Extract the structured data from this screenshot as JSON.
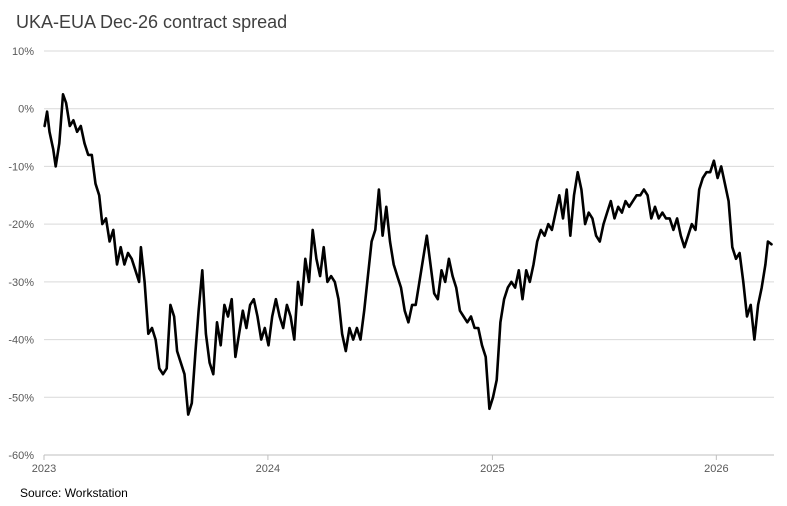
{
  "chart_data": {
    "type": "line",
    "title": "UKA-EUA Dec-26 contract spread",
    "source": "Source: Workstation",
    "xlabel": "",
    "ylabel": "",
    "x_ticks": [
      "2023",
      "2024",
      "2025",
      "2026"
    ],
    "y_ticks": [
      "10%",
      "0%",
      "-10%",
      "-20%",
      "-30%",
      "-40%",
      "-50%",
      "-60%"
    ],
    "ylim": [
      -60,
      10
    ],
    "xlim": [
      "2023-01-01",
      "2026-04-05"
    ],
    "grid": true,
    "legend": "none",
    "series": [
      {
        "color": "#000000",
        "points": [
          [
            "2023-01-02",
            -3
          ],
          [
            "2023-01-06",
            -0.5
          ],
          [
            "2023-01-10",
            -4
          ],
          [
            "2023-01-16",
            -7
          ],
          [
            "2023-01-20",
            -10
          ],
          [
            "2023-01-26",
            -6
          ],
          [
            "2023-02-01",
            2.5
          ],
          [
            "2023-02-06",
            1
          ],
          [
            "2023-02-12",
            -3
          ],
          [
            "2023-02-18",
            -2
          ],
          [
            "2023-02-24",
            -4
          ],
          [
            "2023-03-02",
            -3
          ],
          [
            "2023-03-08",
            -6
          ],
          [
            "2023-03-14",
            -8
          ],
          [
            "2023-03-20",
            -8
          ],
          [
            "2023-03-26",
            -13
          ],
          [
            "2023-04-01",
            -15
          ],
          [
            "2023-04-06",
            -20
          ],
          [
            "2023-04-12",
            -19
          ],
          [
            "2023-04-18",
            -23
          ],
          [
            "2023-04-24",
            -21
          ],
          [
            "2023-04-30",
            -27
          ],
          [
            "2023-05-06",
            -24
          ],
          [
            "2023-05-12",
            -27
          ],
          [
            "2023-05-18",
            -25
          ],
          [
            "2023-05-24",
            -26
          ],
          [
            "2023-05-30",
            -28
          ],
          [
            "2023-06-05",
            -30
          ],
          [
            "2023-06-08",
            -24
          ],
          [
            "2023-06-14",
            -30
          ],
          [
            "2023-06-20",
            -39
          ],
          [
            "2023-06-26",
            -38
          ],
          [
            "2023-07-02",
            -40
          ],
          [
            "2023-07-08",
            -45
          ],
          [
            "2023-07-14",
            -46
          ],
          [
            "2023-07-20",
            -45
          ],
          [
            "2023-07-26",
            -34
          ],
          [
            "2023-08-01",
            -36
          ],
          [
            "2023-08-06",
            -42
          ],
          [
            "2023-08-12",
            -44
          ],
          [
            "2023-08-18",
            -46
          ],
          [
            "2023-08-24",
            -53
          ],
          [
            "2023-08-30",
            -51
          ],
          [
            "2023-09-05",
            -42
          ],
          [
            "2023-09-10",
            -35
          ],
          [
            "2023-09-16",
            -28
          ],
          [
            "2023-09-22",
            -39
          ],
          [
            "2023-09-28",
            -44
          ],
          [
            "2023-10-04",
            -46
          ],
          [
            "2023-10-10",
            -37
          ],
          [
            "2023-10-16",
            -41
          ],
          [
            "2023-10-22",
            -34
          ],
          [
            "2023-10-28",
            -36
          ],
          [
            "2023-11-03",
            -33
          ],
          [
            "2023-11-09",
            -43
          ],
          [
            "2023-11-15",
            -39
          ],
          [
            "2023-11-21",
            -35
          ],
          [
            "2023-11-27",
            -38
          ],
          [
            "2023-12-03",
            -34
          ],
          [
            "2023-12-09",
            -33
          ],
          [
            "2023-12-15",
            -36
          ],
          [
            "2023-12-21",
            -40
          ],
          [
            "2023-12-27",
            -38
          ],
          [
            "2024-01-02",
            -41
          ],
          [
            "2024-01-08",
            -36
          ],
          [
            "2024-01-14",
            -33
          ],
          [
            "2024-01-20",
            -36
          ],
          [
            "2024-01-26",
            -38
          ],
          [
            "2024-02-01",
            -34
          ],
          [
            "2024-02-07",
            -36
          ],
          [
            "2024-02-13",
            -40
          ],
          [
            "2024-02-19",
            -30
          ],
          [
            "2024-02-25",
            -34
          ],
          [
            "2024-03-02",
            -26
          ],
          [
            "2024-03-08",
            -30
          ],
          [
            "2024-03-14",
            -21
          ],
          [
            "2024-03-20",
            -26
          ],
          [
            "2024-03-26",
            -29
          ],
          [
            "2024-04-01",
            -24
          ],
          [
            "2024-04-07",
            -30
          ],
          [
            "2024-04-13",
            -29
          ],
          [
            "2024-04-19",
            -30
          ],
          [
            "2024-04-25",
            -33
          ],
          [
            "2024-05-01",
            -39
          ],
          [
            "2024-05-07",
            -42
          ],
          [
            "2024-05-13",
            -38
          ],
          [
            "2024-05-19",
            -40
          ],
          [
            "2024-05-25",
            -38
          ],
          [
            "2024-05-31",
            -40
          ],
          [
            "2024-06-06",
            -35
          ],
          [
            "2024-06-12",
            -29
          ],
          [
            "2024-06-18",
            -23
          ],
          [
            "2024-06-24",
            -21
          ],
          [
            "2024-06-30",
            -14
          ],
          [
            "2024-07-06",
            -22
          ],
          [
            "2024-07-12",
            -17
          ],
          [
            "2024-07-18",
            -23
          ],
          [
            "2024-07-24",
            -27
          ],
          [
            "2024-07-30",
            -29
          ],
          [
            "2024-08-05",
            -31
          ],
          [
            "2024-08-11",
            -35
          ],
          [
            "2024-08-17",
            -37
          ],
          [
            "2024-08-23",
            -34
          ],
          [
            "2024-08-29",
            -34
          ],
          [
            "2024-09-04",
            -30
          ],
          [
            "2024-09-10",
            -26
          ],
          [
            "2024-09-16",
            -22
          ],
          [
            "2024-09-22",
            -27
          ],
          [
            "2024-09-28",
            -32
          ],
          [
            "2024-10-04",
            -33
          ],
          [
            "2024-10-10",
            -28
          ],
          [
            "2024-10-16",
            -30
          ],
          [
            "2024-10-22",
            -26
          ],
          [
            "2024-10-28",
            -29
          ],
          [
            "2024-11-03",
            -31
          ],
          [
            "2024-11-09",
            -35
          ],
          [
            "2024-11-15",
            -36
          ],
          [
            "2024-11-21",
            -37
          ],
          [
            "2024-11-27",
            -36
          ],
          [
            "2024-12-03",
            -38
          ],
          [
            "2024-12-09",
            -38
          ],
          [
            "2024-12-15",
            -41
          ],
          [
            "2024-12-21",
            -43
          ],
          [
            "2024-12-27",
            -52
          ],
          [
            "2025-01-02",
            -50
          ],
          [
            "2025-01-08",
            -47
          ],
          [
            "2025-01-14",
            -37
          ],
          [
            "2025-01-20",
            -33
          ],
          [
            "2025-01-26",
            -31
          ],
          [
            "2025-02-01",
            -30
          ],
          [
            "2025-02-07",
            -31
          ],
          [
            "2025-02-13",
            -28
          ],
          [
            "2025-02-19",
            -33
          ],
          [
            "2025-02-25",
            -28
          ],
          [
            "2025-03-03",
            -30
          ],
          [
            "2025-03-09",
            -27
          ],
          [
            "2025-03-15",
            -23
          ],
          [
            "2025-03-21",
            -21
          ],
          [
            "2025-03-27",
            -22
          ],
          [
            "2025-04-02",
            -20
          ],
          [
            "2025-04-08",
            -21
          ],
          [
            "2025-04-14",
            -18
          ],
          [
            "2025-04-20",
            -15
          ],
          [
            "2025-04-26",
            -19
          ],
          [
            "2025-05-02",
            -14
          ],
          [
            "2025-05-08",
            -22
          ],
          [
            "2025-05-14",
            -15
          ],
          [
            "2025-05-20",
            -11
          ],
          [
            "2025-05-26",
            -14
          ],
          [
            "2025-06-01",
            -20
          ],
          [
            "2025-06-07",
            -18
          ],
          [
            "2025-06-13",
            -19
          ],
          [
            "2025-06-19",
            -22
          ],
          [
            "2025-06-25",
            -23
          ],
          [
            "2025-07-01",
            -20
          ],
          [
            "2025-07-07",
            -18
          ],
          [
            "2025-07-13",
            -16
          ],
          [
            "2025-07-19",
            -19
          ],
          [
            "2025-07-25",
            -17
          ],
          [
            "2025-07-31",
            -18
          ],
          [
            "2025-08-06",
            -16
          ],
          [
            "2025-08-12",
            -17
          ],
          [
            "2025-08-18",
            -16
          ],
          [
            "2025-08-24",
            -15
          ],
          [
            "2025-08-30",
            -15
          ],
          [
            "2025-09-05",
            -14
          ],
          [
            "2025-09-11",
            -15
          ],
          [
            "2025-09-17",
            -19
          ],
          [
            "2025-09-23",
            -17
          ],
          [
            "2025-09-29",
            -19
          ],
          [
            "2025-10-05",
            -18
          ],
          [
            "2025-10-11",
            -19
          ],
          [
            "2025-10-17",
            -19
          ],
          [
            "2025-10-23",
            -21
          ],
          [
            "2025-10-29",
            -19
          ],
          [
            "2025-11-04",
            -22
          ],
          [
            "2025-11-10",
            -24
          ],
          [
            "2025-11-16",
            -22
          ],
          [
            "2025-11-22",
            -20
          ],
          [
            "2025-11-28",
            -21
          ],
          [
            "2025-12-04",
            -14
          ],
          [
            "2025-12-10",
            -12
          ],
          [
            "2025-12-16",
            -11
          ],
          [
            "2025-12-22",
            -11
          ],
          [
            "2025-12-28",
            -9
          ],
          [
            "2026-01-03",
            -12
          ],
          [
            "2026-01-09",
            -10
          ],
          [
            "2026-01-15",
            -13
          ],
          [
            "2026-01-21",
            -16
          ],
          [
            "2026-01-27",
            -24
          ],
          [
            "2026-02-02",
            -26
          ],
          [
            "2026-02-08",
            -25
          ],
          [
            "2026-02-14",
            -30
          ],
          [
            "2026-02-20",
            -36
          ],
          [
            "2026-02-26",
            -34
          ],
          [
            "2026-03-04",
            -40
          ],
          [
            "2026-03-10",
            -34
          ],
          [
            "2026-03-16",
            -31
          ],
          [
            "2026-03-22",
            -27
          ],
          [
            "2026-03-26",
            -23
          ],
          [
            "2026-04-01",
            -23.5
          ]
        ]
      }
    ]
  }
}
